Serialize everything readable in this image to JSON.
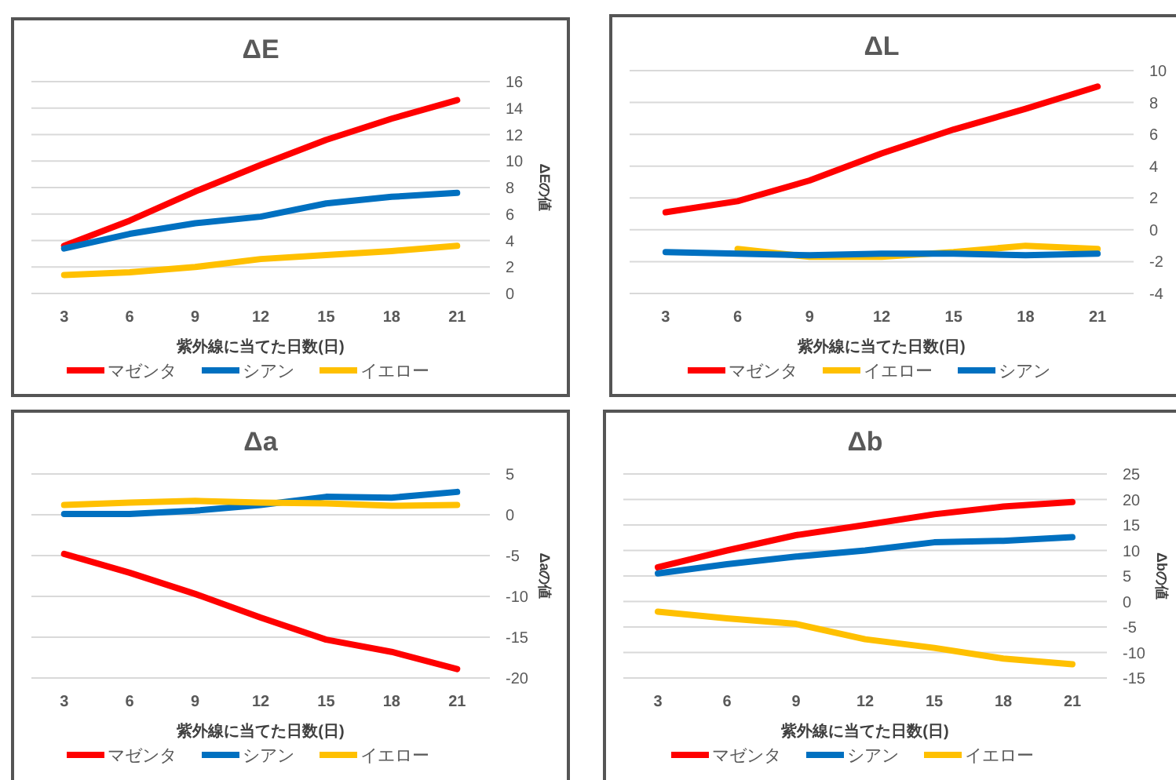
{
  "chart_data": [
    {
      "type": "line",
      "title": "ΔE",
      "xlabel": "紫外線に当てた日数(日)",
      "ylabel": "ΔEの値",
      "categories": [
        "3",
        "6",
        "9",
        "12",
        "15",
        "18",
        "21"
      ],
      "ylim": [
        0,
        16
      ],
      "yticks": [
        0,
        2,
        4,
        6,
        8,
        10,
        12,
        14,
        16
      ],
      "grid": "y",
      "legend": "bottom",
      "series": [
        {
          "name": "マゼンタ",
          "color": "#ff0000",
          "values": [
            3.6,
            5.5,
            7.7,
            9.7,
            11.6,
            13.2,
            14.6
          ]
        },
        {
          "name": "シアン",
          "color": "#0070c0",
          "values": [
            3.4,
            4.5,
            5.3,
            5.8,
            6.8,
            7.3,
            7.6
          ]
        },
        {
          "name": "イエロー",
          "color": "#ffc000",
          "values": [
            1.4,
            1.6,
            2.0,
            2.6,
            2.9,
            3.2,
            3.6
          ]
        }
      ]
    },
    {
      "type": "line",
      "title": "ΔL",
      "xlabel": "紫外線に当てた日数(日)",
      "categories": [
        "3",
        "6",
        "9",
        "12",
        "15",
        "18",
        "21"
      ],
      "ylim": [
        -4,
        10
      ],
      "yticks": [
        -4,
        -2,
        0,
        2,
        4,
        6,
        8,
        10
      ],
      "grid": "y",
      "legend": "bottom",
      "series": [
        {
          "name": "マゼンタ",
          "color": "#ff0000",
          "values": [
            1.1,
            1.8,
            3.1,
            4.8,
            6.3,
            7.6,
            9.0
          ]
        },
        {
          "name": "イエロー",
          "color": "#ffc000",
          "values": [
            null,
            -1.2,
            -1.7,
            -1.7,
            -1.4,
            -1.0,
            -1.2
          ]
        },
        {
          "name": "シアン",
          "color": "#0070c0",
          "values": [
            -1.4,
            -1.5,
            -1.6,
            -1.5,
            -1.5,
            -1.6,
            -1.5
          ]
        }
      ]
    },
    {
      "type": "line",
      "title": "Δa",
      "xlabel": "紫外線に当てた日数(日)",
      "ylabel": "Δaの値",
      "categories": [
        "3",
        "6",
        "9",
        "12",
        "15",
        "18",
        "21"
      ],
      "ylim": [
        -20,
        5
      ],
      "yticks": [
        -20,
        -15,
        -10,
        -5,
        0,
        5
      ],
      "grid": "y",
      "legend": "bottom",
      "series": [
        {
          "name": "マゼンタ",
          "color": "#ff0000",
          "values": [
            -4.8,
            -7.1,
            -9.7,
            -12.6,
            -15.3,
            -16.8,
            -18.9
          ]
        },
        {
          "name": "シアン",
          "color": "#0070c0",
          "values": [
            0.1,
            0.1,
            0.5,
            1.2,
            2.2,
            2.1,
            2.8
          ]
        },
        {
          "name": "イエロー",
          "color": "#ffc000",
          "values": [
            1.2,
            1.5,
            1.7,
            1.5,
            1.4,
            1.1,
            1.2
          ]
        }
      ]
    },
    {
      "type": "line",
      "title": "Δb",
      "xlabel": "紫外線に当てた日数(日)",
      "ylabel": "Δbの値",
      "categories": [
        "3",
        "6",
        "9",
        "12",
        "15",
        "18",
        "21"
      ],
      "ylim": [
        -15,
        25
      ],
      "yticks": [
        -15,
        -10,
        -5,
        0,
        5,
        10,
        15,
        20,
        25
      ],
      "grid": "y",
      "legend": "bottom",
      "series": [
        {
          "name": "マゼンタ",
          "color": "#ff0000",
          "values": [
            6.7,
            10.0,
            13.0,
            15.0,
            17.1,
            18.6,
            19.5
          ]
        },
        {
          "name": "シアン",
          "color": "#0070c0",
          "values": [
            5.5,
            7.3,
            8.8,
            10.0,
            11.6,
            11.9,
            12.6
          ]
        },
        {
          "name": "イエロー",
          "color": "#ffc000",
          "values": [
            -2.0,
            -3.3,
            -4.4,
            -7.4,
            -9.1,
            -11.2,
            -12.3
          ]
        }
      ]
    }
  ]
}
